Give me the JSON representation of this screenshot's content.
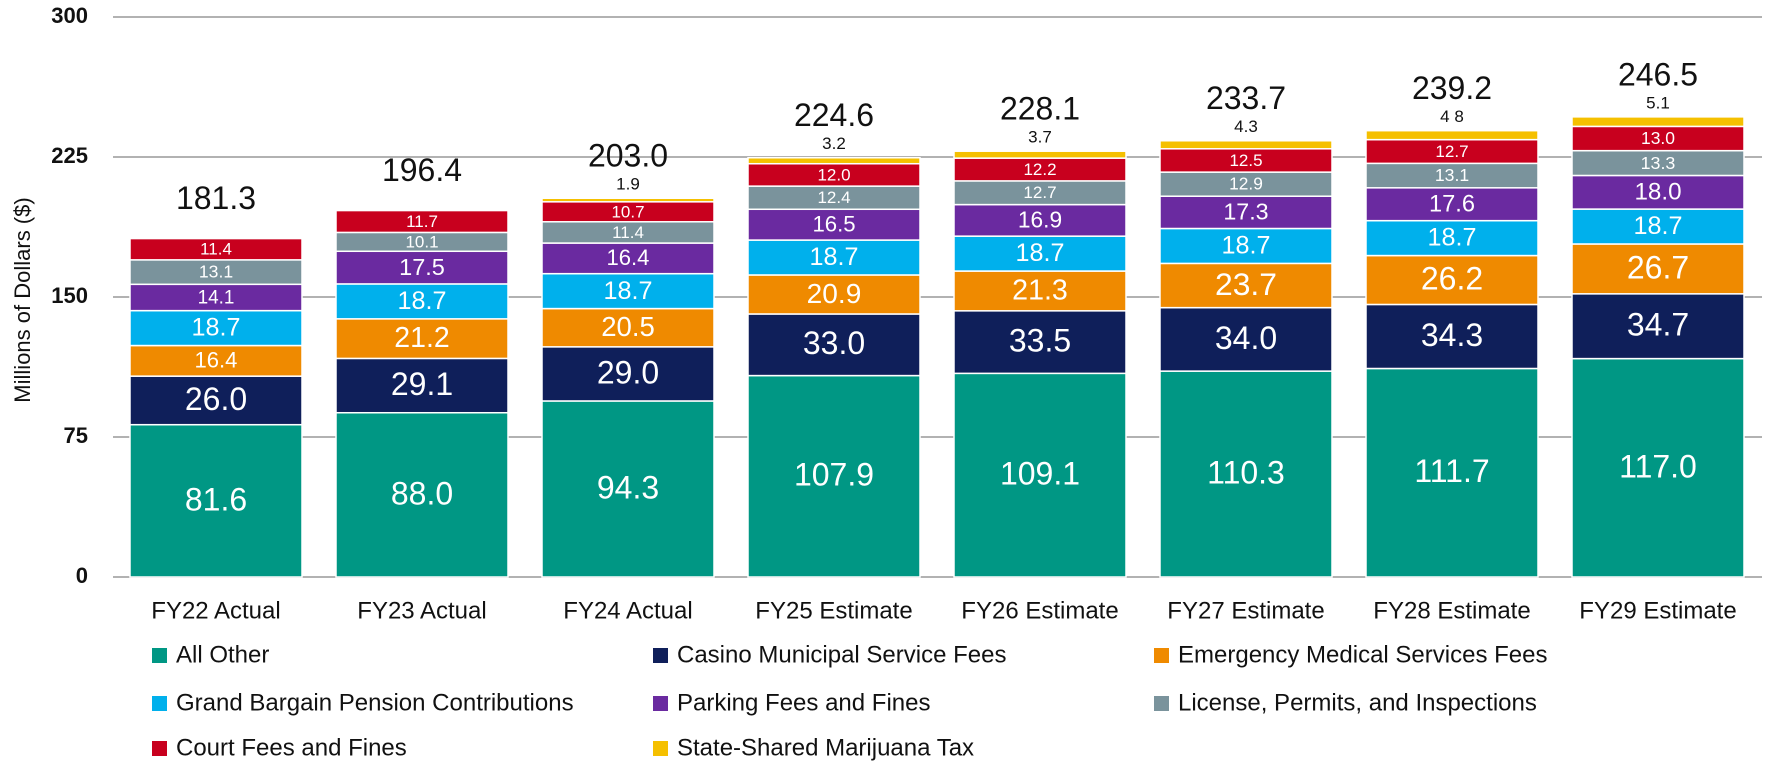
{
  "chart_data": {
    "type": "stacked_bar",
    "y_label": "Millions of Dollars ($)",
    "categories": [
      "FY22 Actual",
      "FY23 Actual",
      "FY24 Actual",
      "FY25 Estimate",
      "FY26 Estimate",
      "FY27 Estimate",
      "FY28 Estimate",
      "FY29 Estimate"
    ],
    "ylim": [
      0,
      300
    ],
    "yticks": [
      0,
      75,
      150,
      225,
      300
    ],
    "grid": true,
    "series": [
      {
        "name": "All Other",
        "color": "#009784",
        "values": [
          81.6,
          88.0,
          94.3,
          107.9,
          109.1,
          110.3,
          111.7,
          117.0
        ],
        "value_labels": [
          "81.6",
          "88.0",
          "94.3",
          "107.9",
          "109.1",
          "110.3",
          "111.7",
          "117.0"
        ]
      },
      {
        "name": "Casino Municipal Service Fees",
        "color": "#0f1f5a",
        "values": [
          26.0,
          29.1,
          29.0,
          33.0,
          33.5,
          34.0,
          34.3,
          34.7
        ],
        "value_labels": [
          "26.0",
          "29.1",
          "29.0",
          "33.0",
          "33.5",
          "34.0",
          "34.3",
          "34.7"
        ]
      },
      {
        "name": "Emergency Medical Services Fees",
        "color": "#ef8a00",
        "values": [
          16.4,
          21.2,
          20.5,
          20.9,
          21.3,
          23.7,
          26.2,
          26.7
        ],
        "value_labels": [
          "16.4",
          "21.2",
          "20.5",
          "20.9",
          "21.3",
          "23.7",
          "26.2",
          "26.7"
        ]
      },
      {
        "name": "Grand Bargain Pension Contributions",
        "color": "#00b0ec",
        "values": [
          18.7,
          18.7,
          18.7,
          18.7,
          18.7,
          18.7,
          18.7,
          18.7
        ],
        "value_labels": [
          "18.7",
          "18.7",
          "18.7",
          "18.7",
          "18.7",
          "18.7",
          "18.7",
          "18.7"
        ]
      },
      {
        "name": "Parking Fees and Fines",
        "color": "#6a2aa0",
        "values": [
          14.1,
          17.5,
          16.4,
          16.5,
          16.9,
          17.3,
          17.6,
          18.0
        ],
        "value_labels": [
          "14.1",
          "17.5",
          "16.4",
          "16.5",
          "16.9",
          "17.3",
          "17.6",
          "18.0"
        ]
      },
      {
        "name": "License, Permits, and Inspections",
        "color": "#7a939c",
        "values": [
          13.1,
          10.1,
          11.4,
          12.4,
          12.7,
          12.9,
          13.1,
          13.3
        ],
        "value_labels": [
          "13.1",
          "10.1",
          "11.4",
          "12.4",
          "12.7",
          "12.9",
          "13.1",
          "13.3"
        ]
      },
      {
        "name": "Court Fees and Fines",
        "color": "#c8001e",
        "values": [
          11.4,
          11.7,
          10.7,
          12.0,
          12.2,
          12.5,
          12.7,
          13.0
        ],
        "value_labels": [
          "11.4",
          "11.7",
          "10.7",
          "12.0",
          "12.2",
          "12.5",
          "12.7",
          "13.0"
        ]
      },
      {
        "name": "State-Shared Marijuana Tax",
        "color": "#f5c000",
        "values": [
          null,
          null,
          1.9,
          3.2,
          3.7,
          4.3,
          4.8,
          5.1
        ],
        "value_labels": [
          null,
          null,
          "1.9",
          "3.2",
          "3.7",
          "4.3",
          "4 8",
          "5.1"
        ]
      }
    ],
    "totals": {
      "values": [
        181.3,
        196.4,
        203.0,
        224.6,
        228.1,
        233.7,
        239.2,
        246.5
      ],
      "value_labels": [
        "181.3",
        "196.4",
        "203.0",
        "224.6",
        "228.1",
        "233.7",
        "239.2",
        "246.5"
      ]
    }
  }
}
